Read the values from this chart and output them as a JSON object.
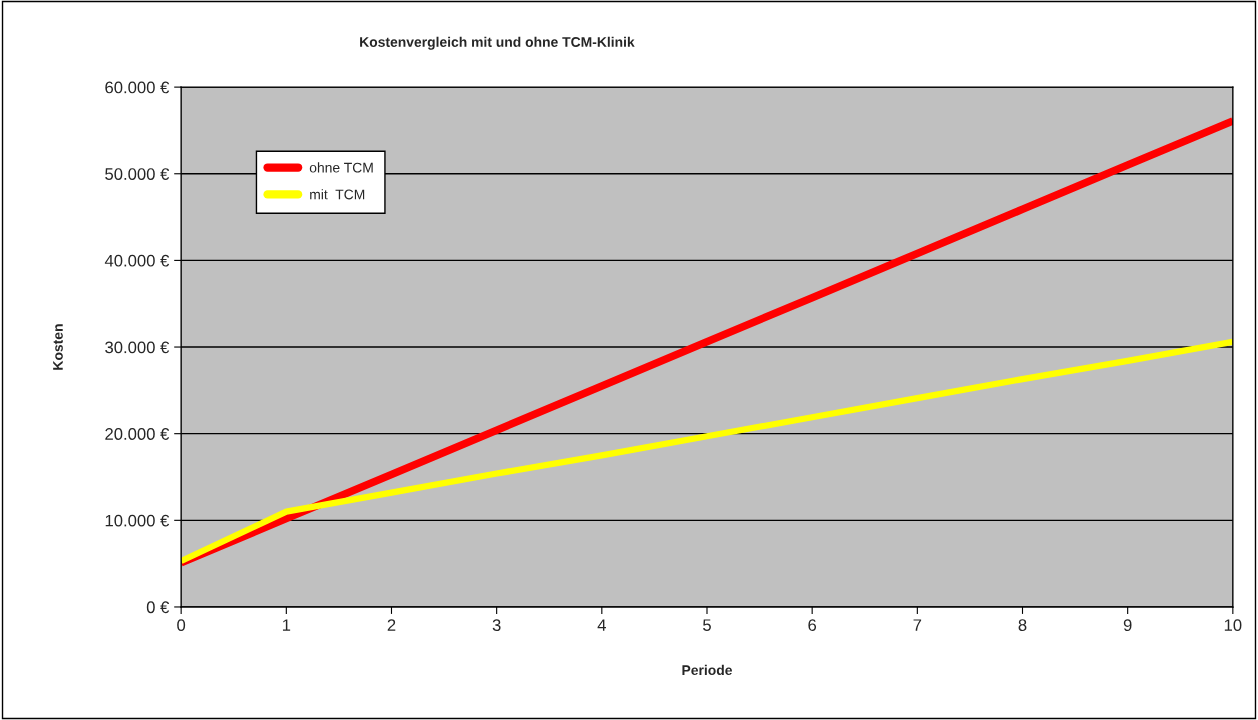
{
  "chart_data": {
    "type": "line",
    "title": "Kostenvergleich mit und ohne TCM-Klinik",
    "xlabel": "Periode",
    "ylabel": "Kosten",
    "x": [
      0,
      1,
      2,
      3,
      4,
      5,
      6,
      7,
      8,
      9,
      10
    ],
    "series": [
      {
        "name": "ohne TCM",
        "color": "#ff0000",
        "values": [
          5100,
          10200,
          15300,
          20400,
          25500,
          30600,
          35700,
          40800,
          45900,
          51000,
          56100
        ]
      },
      {
        "name": "mit  TCM",
        "color": "#ffff00",
        "values": [
          5300,
          11000,
          13200,
          15400,
          17500,
          19700,
          21900,
          24100,
          26300,
          28400,
          30600
        ]
      }
    ],
    "xlim": [
      0,
      10
    ],
    "xticks": [
      0,
      1,
      2,
      3,
      4,
      5,
      6,
      7,
      8,
      9,
      10
    ],
    "ylim": [
      0,
      60000
    ],
    "yticks": [
      {
        "value": 0,
        "label": "0 €"
      },
      {
        "value": 10000,
        "label": "10.000 €"
      },
      {
        "value": 20000,
        "label": "20.000 €"
      },
      {
        "value": 30000,
        "label": "30.000 €"
      },
      {
        "value": 40000,
        "label": "40.000 €"
      },
      {
        "value": 50000,
        "label": "50.000 €"
      },
      {
        "value": 60000,
        "label": "60.000 €"
      }
    ],
    "grid": "y",
    "legend": "top left",
    "marker": "none",
    "line_style": "solid"
  }
}
